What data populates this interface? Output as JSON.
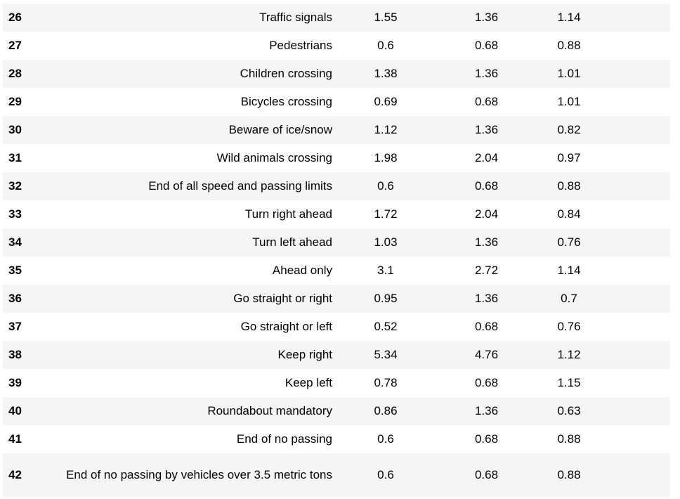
{
  "table": {
    "rows": [
      {
        "index": "26",
        "name": "Traffic signals",
        "v1": "1.55",
        "v2": "1.36",
        "v3": "1.14"
      },
      {
        "index": "27",
        "name": "Pedestrians",
        "v1": "0.6",
        "v2": "0.68",
        "v3": "0.88"
      },
      {
        "index": "28",
        "name": "Children crossing",
        "v1": "1.38",
        "v2": "1.36",
        "v3": "1.01"
      },
      {
        "index": "29",
        "name": "Bicycles crossing",
        "v1": "0.69",
        "v2": "0.68",
        "v3": "1.01"
      },
      {
        "index": "30",
        "name": "Beware of ice/snow",
        "v1": "1.12",
        "v2": "1.36",
        "v3": "0.82"
      },
      {
        "index": "31",
        "name": "Wild animals crossing",
        "v1": "1.98",
        "v2": "2.04",
        "v3": "0.97"
      },
      {
        "index": "32",
        "name": "End of all speed and passing limits",
        "v1": "0.6",
        "v2": "0.68",
        "v3": "0.88"
      },
      {
        "index": "33",
        "name": "Turn right ahead",
        "v1": "1.72",
        "v2": "2.04",
        "v3": "0.84"
      },
      {
        "index": "34",
        "name": "Turn left ahead",
        "v1": "1.03",
        "v2": "1.36",
        "v3": "0.76"
      },
      {
        "index": "35",
        "name": "Ahead only",
        "v1": "3.1",
        "v2": "2.72",
        "v3": "1.14"
      },
      {
        "index": "36",
        "name": "Go straight or right",
        "v1": "0.95",
        "v2": "1.36",
        "v3": "0.7"
      },
      {
        "index": "37",
        "name": "Go straight or left",
        "v1": "0.52",
        "v2": "0.68",
        "v3": "0.76"
      },
      {
        "index": "38",
        "name": "Keep right",
        "v1": "5.34",
        "v2": "4.76",
        "v3": "1.12"
      },
      {
        "index": "39",
        "name": "Keep left",
        "v1": "0.78",
        "v2": "0.68",
        "v3": "1.15"
      },
      {
        "index": "40",
        "name": "Roundabout mandatory",
        "v1": "0.86",
        "v2": "1.36",
        "v3": "0.63"
      },
      {
        "index": "41",
        "name": "End of no passing",
        "v1": "0.6",
        "v2": "0.68",
        "v3": "0.88"
      },
      {
        "index": "42",
        "name": "End of no passing by vehicles over 3.5 metric tons",
        "v1": "0.6",
        "v2": "0.68",
        "v3": "0.88"
      }
    ]
  }
}
